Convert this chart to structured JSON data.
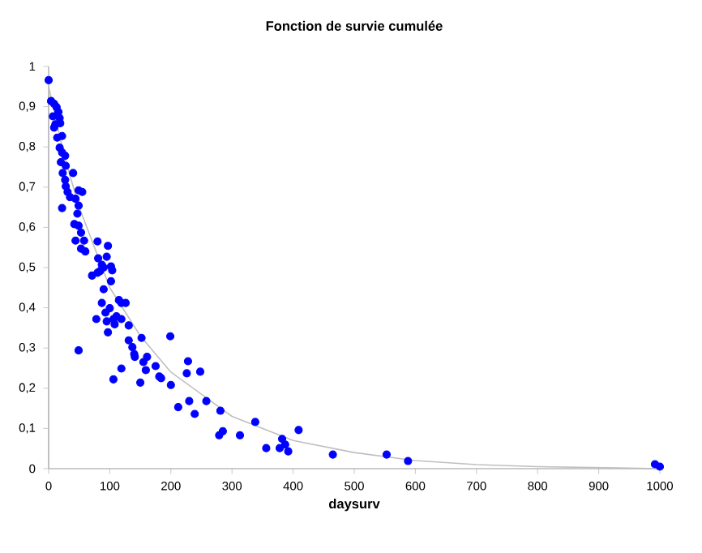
{
  "chart_data": {
    "type": "scatter",
    "title": "Fonction de survie cumulée",
    "xlabel": "daysurv",
    "xlim": [
      0,
      1000
    ],
    "ylim": [
      0,
      1
    ],
    "xticks": [
      0,
      100,
      200,
      300,
      400,
      500,
      600,
      700,
      800,
      900,
      1000
    ],
    "yticks": [
      0,
      {
        "value": 0.1,
        "label": "0,1"
      },
      {
        "value": 0.2,
        "label": "0,2"
      },
      {
        "value": 0.3,
        "label": "0,3"
      },
      {
        "value": 0.4,
        "label": "0,4"
      },
      {
        "value": 0.5,
        "label": "0,5"
      },
      {
        "value": 0.6,
        "label": "0,6"
      },
      {
        "value": 0.7,
        "label": "0,7"
      },
      {
        "value": 0.8,
        "label": "0,8"
      },
      {
        "value": 0.9,
        "label": "0,9"
      },
      1
    ],
    "grid": false,
    "series": [
      {
        "marker": "circle",
        "color": "#0000ff",
        "x": [
          0,
          4,
          9,
          13,
          16,
          7,
          18,
          11,
          19,
          9,
          22,
          14,
          18,
          22,
          27,
          20,
          28,
          23,
          27,
          28,
          31,
          40,
          35,
          44,
          49,
          55,
          49,
          22,
          47,
          42,
          49,
          53,
          44,
          58,
          53,
          60,
          71,
          80,
          80,
          81,
          87,
          84,
          90,
          95,
          104,
          97,
          102,
          90,
          78,
          87,
          93,
          95,
          100,
          102,
          106,
          108,
          111,
          119,
          115,
          119,
          126,
          97,
          131,
          131,
          137,
          140,
          141,
          152,
          155,
          159,
          161,
          175,
          181,
          184,
          199,
          200,
          212,
          228,
          226,
          230,
          239,
          248,
          258,
          281,
          279,
          285,
          313,
          106,
          119,
          150,
          49,
          338,
          356,
          378,
          382,
          387,
          392,
          409,
          465,
          553,
          588,
          992,
          1000
        ],
        "values": [
          0.966,
          0.914,
          0.907,
          0.899,
          0.887,
          0.876,
          0.872,
          0.856,
          0.859,
          0.848,
          0.827,
          0.823,
          0.798,
          0.786,
          0.778,
          0.762,
          0.753,
          0.735,
          0.718,
          0.702,
          0.688,
          0.735,
          0.675,
          0.671,
          0.692,
          0.688,
          0.654,
          0.648,
          0.634,
          0.608,
          0.604,
          0.587,
          0.567,
          0.567,
          0.547,
          0.54,
          0.48,
          0.487,
          0.565,
          0.523,
          0.507,
          0.491,
          0.5,
          0.527,
          0.493,
          0.554,
          0.503,
          0.446,
          0.372,
          0.412,
          0.388,
          0.366,
          0.399,
          0.466,
          0.372,
          0.359,
          0.379,
          0.372,
          0.419,
          0.412,
          0.412,
          0.339,
          0.356,
          0.319,
          0.302,
          0.285,
          0.278,
          0.325,
          0.265,
          0.245,
          0.278,
          0.255,
          0.229,
          0.225,
          0.329,
          0.208,
          0.153,
          0.267,
          0.237,
          0.168,
          0.136,
          0.241,
          0.168,
          0.144,
          0.083,
          0.093,
          0.083,
          0.222,
          0.249,
          0.214,
          0.294,
          0.116,
          0.051,
          0.051,
          0.074,
          0.06,
          0.043,
          0.096,
          0.035,
          0.035,
          0.019,
          0.011,
          0.005
        ]
      },
      {
        "type": "line",
        "marker": "none",
        "color": "#bfbfbf",
        "x": [
          0,
          0,
          25,
          50,
          100,
          150,
          200,
          300,
          400,
          500,
          600,
          700,
          800,
          1000
        ],
        "values": [
          0,
          0.95,
          0.78,
          0.65,
          0.45,
          0.33,
          0.24,
          0.13,
          0.07,
          0.04,
          0.02,
          0.01,
          0.005,
          0
        ]
      }
    ]
  }
}
